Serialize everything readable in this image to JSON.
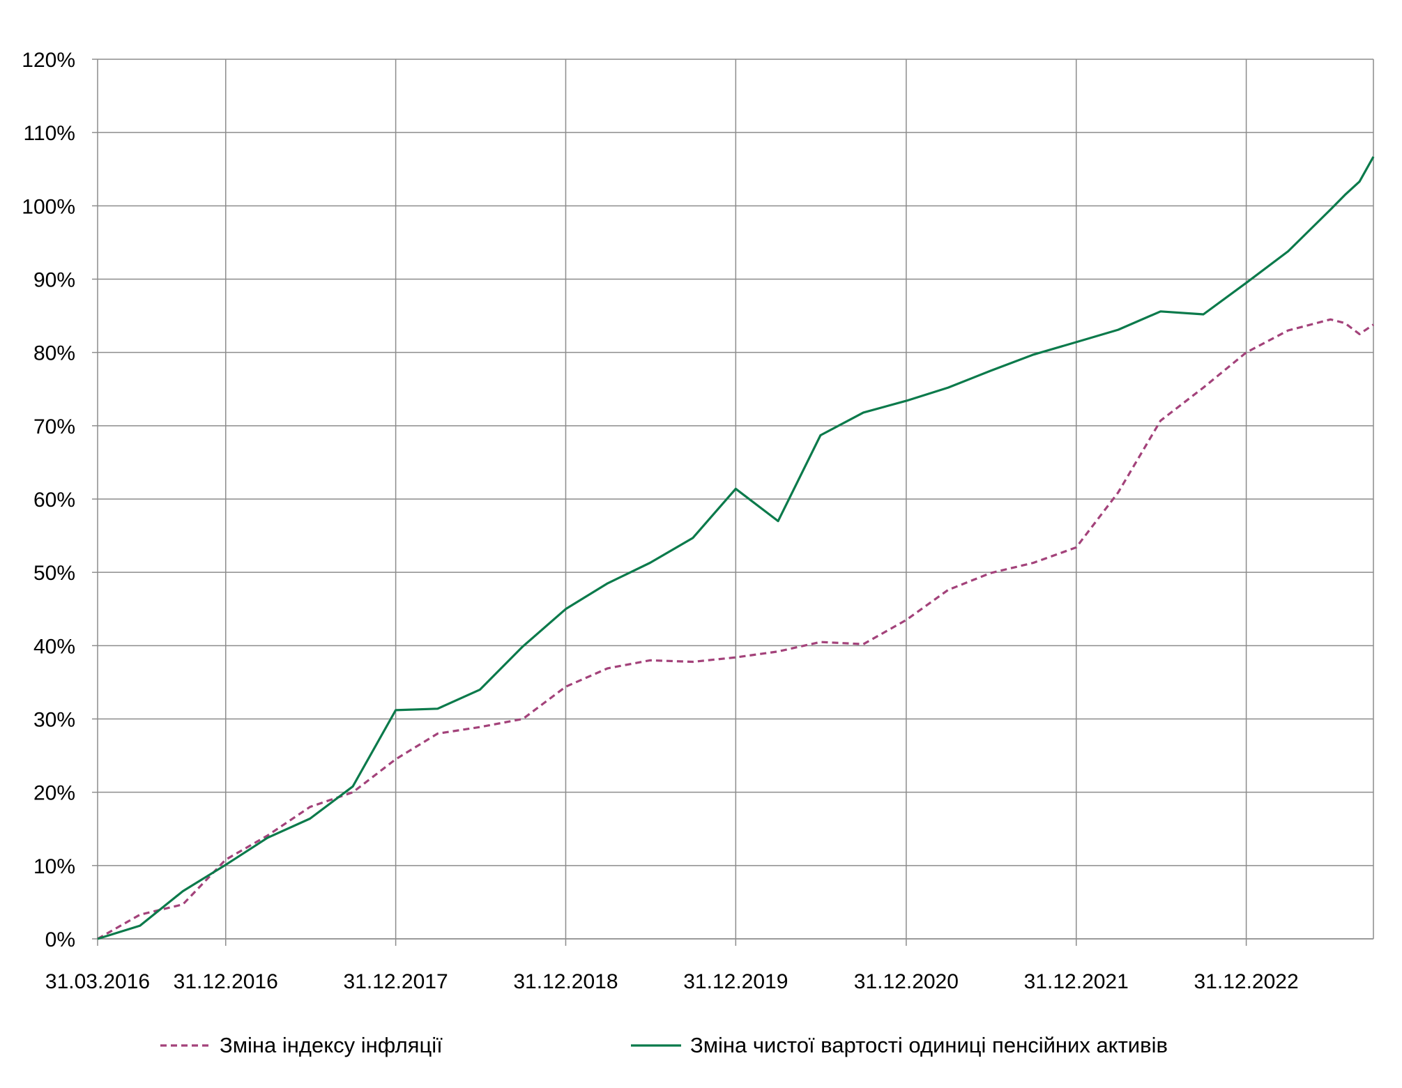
{
  "chart_data": {
    "type": "line",
    "title": "",
    "xlabel": "",
    "ylabel": "",
    "x_tick_labels": [
      "31.03.2016",
      "31.12.2016",
      "31.12.2017",
      "31.12.2018",
      "31.12.2019",
      "31.12.2020",
      "31.12.2021",
      "31.12.2022"
    ],
    "y_tick_labels": [
      "0%",
      "10%",
      "20%",
      "30%",
      "40%",
      "50%",
      "60%",
      "70%",
      "80%",
      "90%",
      "100%",
      "110%",
      "120%"
    ],
    "ylim": [
      0,
      120
    ],
    "xlim": [
      "2016-03-31",
      "2023-09-30"
    ],
    "grid": true,
    "legend_position": "bottom",
    "series": [
      {
        "name": "Зміна індексу інфляції",
        "style": "dashed",
        "color": "#a3427a",
        "points": [
          [
            "2016-03-31",
            0.0
          ],
          [
            "2016-06-30",
            3.3
          ],
          [
            "2016-09-30",
            4.7
          ],
          [
            "2016-12-31",
            10.8
          ],
          [
            "2017-03-31",
            14.1
          ],
          [
            "2017-06-30",
            18.0
          ],
          [
            "2017-09-30",
            20.0
          ],
          [
            "2017-12-31",
            24.5
          ],
          [
            "2018-03-31",
            28.0
          ],
          [
            "2018-06-30",
            28.9
          ],
          [
            "2018-09-30",
            30.0
          ],
          [
            "2018-12-31",
            34.4
          ],
          [
            "2019-03-31",
            36.9
          ],
          [
            "2019-06-30",
            38.0
          ],
          [
            "2019-09-30",
            37.8
          ],
          [
            "2019-12-31",
            38.4
          ],
          [
            "2020-03-31",
            39.2
          ],
          [
            "2020-06-30",
            40.5
          ],
          [
            "2020-09-30",
            40.2
          ],
          [
            "2020-12-31",
            43.5
          ],
          [
            "2021-03-31",
            47.6
          ],
          [
            "2021-06-30",
            49.9
          ],
          [
            "2021-09-30",
            51.3
          ],
          [
            "2021-12-31",
            53.4
          ],
          [
            "2022-03-31",
            60.9
          ],
          [
            "2022-06-30",
            70.7
          ],
          [
            "2022-09-30",
            75.2
          ],
          [
            "2022-12-31",
            80.0
          ],
          [
            "2023-03-31",
            83.0
          ],
          [
            "2023-06-30",
            84.5
          ],
          [
            "2023-07-31",
            84.0
          ],
          [
            "2023-08-31",
            82.5
          ],
          [
            "2023-09-30",
            83.8
          ]
        ]
      },
      {
        "name": "Зміна чистої вартості одиниці пенсійних активів",
        "style": "solid",
        "color": "#0b7a4b",
        "points": [
          [
            "2016-03-31",
            0.0
          ],
          [
            "2016-06-30",
            1.8
          ],
          [
            "2016-09-30",
            6.5
          ],
          [
            "2016-12-31",
            10.1
          ],
          [
            "2017-03-31",
            13.8
          ],
          [
            "2017-06-30",
            16.4
          ],
          [
            "2017-09-30",
            20.8
          ],
          [
            "2017-12-31",
            31.2
          ],
          [
            "2018-03-31",
            31.4
          ],
          [
            "2018-06-30",
            34.0
          ],
          [
            "2018-09-30",
            39.9
          ],
          [
            "2018-12-31",
            45.0
          ],
          [
            "2019-03-31",
            48.5
          ],
          [
            "2019-06-30",
            51.3
          ],
          [
            "2019-09-30",
            54.7
          ],
          [
            "2019-12-31",
            61.4
          ],
          [
            "2020-03-31",
            57.0
          ],
          [
            "2020-06-30",
            68.7
          ],
          [
            "2020-09-30",
            71.8
          ],
          [
            "2020-12-31",
            73.4
          ],
          [
            "2021-03-31",
            75.2
          ],
          [
            "2021-06-30",
            77.5
          ],
          [
            "2021-09-30",
            79.7
          ],
          [
            "2021-12-31",
            81.4
          ],
          [
            "2022-03-31",
            83.1
          ],
          [
            "2022-06-30",
            85.6
          ],
          [
            "2022-09-30",
            85.2
          ],
          [
            "2022-12-31",
            89.5
          ],
          [
            "2023-03-31",
            93.8
          ],
          [
            "2023-06-30",
            99.5
          ],
          [
            "2023-07-31",
            101.5
          ],
          [
            "2023-08-31",
            103.3
          ],
          [
            "2023-09-30",
            106.7
          ]
        ]
      }
    ]
  }
}
